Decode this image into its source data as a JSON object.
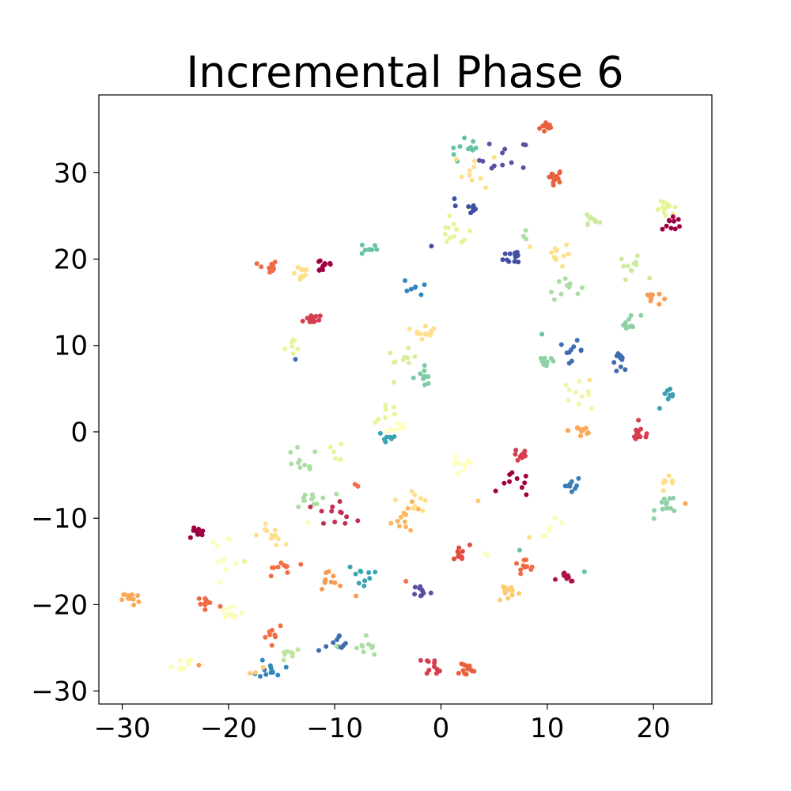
{
  "chart_data": {
    "type": "scatter",
    "title": "Incremental Phase 6",
    "xlabel": "",
    "ylabel": "",
    "xlim": [
      -32.2,
      25.5
    ],
    "ylim": [
      -31.5,
      39.0
    ],
    "xticks": [
      -30,
      -20,
      -10,
      0,
      10,
      20
    ],
    "yticks": [
      -30,
      -20,
      -10,
      0,
      10,
      20,
      30
    ],
    "xtick_labels": [
      "−30",
      "−20",
      "−10",
      "0",
      "10",
      "20"
    ],
    "ytick_labels": [
      "−30",
      "−20",
      "−10",
      "0",
      "10",
      "20",
      "30"
    ],
    "grid": false,
    "legend": "none",
    "clusters": [
      {
        "x": 10.0,
        "y": 35.3,
        "n": 12,
        "spread": 0.35,
        "color": "#e8603c"
      },
      {
        "x": 10.7,
        "y": 29.6,
        "n": 12,
        "spread": 0.4,
        "color": "#e8603c"
      },
      {
        "x": 2.5,
        "y": 32.4,
        "n": 10,
        "spread": 0.8,
        "color": "#66c2a5"
      },
      {
        "x": 6.0,
        "y": 31.5,
        "n": 12,
        "spread": 1.2,
        "color": "#5e4fa2"
      },
      {
        "x": 3.5,
        "y": 30.3,
        "n": 10,
        "spread": 1.0,
        "color": "#fee08b"
      },
      {
        "x": 2.8,
        "y": 25.8,
        "n": 8,
        "spread": 0.3,
        "color": "#3f4ea1"
      },
      {
        "x": 1.2,
        "y": 26.0,
        "n": 2,
        "spread": 0.6,
        "color": "#3f4ea1"
      },
      {
        "x": 1.3,
        "y": 23.0,
        "n": 12,
        "spread": 0.8,
        "color": "#e6f598"
      },
      {
        "x": 14.0,
        "y": 24.5,
        "n": 10,
        "spread": 0.45,
        "color": "#cdeb9d"
      },
      {
        "x": 21.3,
        "y": 25.6,
        "n": 12,
        "spread": 0.5,
        "color": "#e6f598"
      },
      {
        "x": 21.8,
        "y": 24.2,
        "n": 10,
        "spread": 0.5,
        "color": "#9e0142"
      },
      {
        "x": -6.8,
        "y": 21.2,
        "n": 8,
        "spread": 0.4,
        "color": "#66c2a5"
      },
      {
        "x": -16.3,
        "y": 19.0,
        "n": 12,
        "spread": 0.45,
        "color": "#f06a44"
      },
      {
        "x": -13.3,
        "y": 18.5,
        "n": 12,
        "spread": 0.5,
        "color": "#fee08b"
      },
      {
        "x": -11.0,
        "y": 19.3,
        "n": 12,
        "spread": 0.5,
        "color": "#9e0142"
      },
      {
        "x": 7.0,
        "y": 20.4,
        "n": 12,
        "spread": 0.55,
        "color": "#3f4ea1"
      },
      {
        "x": 10.8,
        "y": 20.6,
        "n": 12,
        "spread": 0.7,
        "color": "#fee08b"
      },
      {
        "x": 11.5,
        "y": 17.0,
        "n": 10,
        "spread": 0.8,
        "color": "#abdda4"
      },
      {
        "x": 18.0,
        "y": 19.0,
        "n": 10,
        "spread": 0.6,
        "color": "#cdeb9d"
      },
      {
        "x": 8.0,
        "y": 22.4,
        "n": 3,
        "spread": 0.4,
        "color": "#abdda4"
      },
      {
        "x": -2.3,
        "y": 16.8,
        "n": 7,
        "spread": 0.6,
        "color": "#3288bd"
      },
      {
        "x": -12.2,
        "y": 13.1,
        "n": 12,
        "spread": 0.4,
        "color": "#d53e4f"
      },
      {
        "x": 19.8,
        "y": 15.5,
        "n": 10,
        "spread": 0.45,
        "color": "#f89a52"
      },
      {
        "x": 17.8,
        "y": 12.6,
        "n": 10,
        "spread": 0.5,
        "color": "#8fd1a4"
      },
      {
        "x": -1.5,
        "y": 11.8,
        "n": 12,
        "spread": 0.5,
        "color": "#fee08b"
      },
      {
        "x": -13.7,
        "y": 9.8,
        "n": 7,
        "spread": 0.5,
        "color": "#e6f598"
      },
      {
        "x": -3.7,
        "y": 8.1,
        "n": 10,
        "spread": 0.7,
        "color": "#d8ef9c"
      },
      {
        "x": 9.9,
        "y": 8.3,
        "n": 10,
        "spread": 0.5,
        "color": "#8fd1a4"
      },
      {
        "x": 12.3,
        "y": 9.4,
        "n": 10,
        "spread": 0.55,
        "color": "#3f6cb0"
      },
      {
        "x": 17.0,
        "y": 8.1,
        "n": 10,
        "spread": 0.5,
        "color": "#3f6cb0"
      },
      {
        "x": -1.7,
        "y": 6.4,
        "n": 10,
        "spread": 0.55,
        "color": "#7ecba4"
      },
      {
        "x": 12.6,
        "y": 4.5,
        "n": 10,
        "spread": 0.7,
        "color": "#f1f6a8"
      },
      {
        "x": 21.4,
        "y": 3.8,
        "n": 9,
        "spread": 0.6,
        "color": "#3a9eb3"
      },
      {
        "x": -5.0,
        "y": 2.2,
        "n": 7,
        "spread": 0.6,
        "color": "#e6f598"
      },
      {
        "x": -4.2,
        "y": 0.4,
        "n": 8,
        "spread": 0.6,
        "color": "#ffffbf"
      },
      {
        "x": -5.0,
        "y": -0.6,
        "n": 8,
        "spread": 0.5,
        "color": "#3aa4b0"
      },
      {
        "x": 13.2,
        "y": 0.2,
        "n": 12,
        "spread": 0.6,
        "color": "#fba857"
      },
      {
        "x": 18.8,
        "y": -0.3,
        "n": 12,
        "spread": 0.5,
        "color": "#d53e4f"
      },
      {
        "x": -10.0,
        "y": -2.2,
        "n": 5,
        "spread": 0.6,
        "color": "#e6f598"
      },
      {
        "x": -13.3,
        "y": -3.7,
        "n": 10,
        "spread": 0.9,
        "color": "#abdda4"
      },
      {
        "x": 1.7,
        "y": -4.2,
        "n": 10,
        "spread": 0.7,
        "color": "#ffffbf"
      },
      {
        "x": 7.6,
        "y": -2.7,
        "n": 10,
        "spread": 0.4,
        "color": "#d53e4f"
      },
      {
        "x": 7.0,
        "y": -6.2,
        "n": 10,
        "spread": 0.7,
        "color": "#9e0142"
      },
      {
        "x": 12.2,
        "y": -6.1,
        "n": 10,
        "spread": 0.5,
        "color": "#3a7fb8"
      },
      {
        "x": 21.3,
        "y": -6.3,
        "n": 7,
        "spread": 0.5,
        "color": "#fee08b"
      },
      {
        "x": 21.4,
        "y": -8.5,
        "n": 12,
        "spread": 0.6,
        "color": "#8fd1a4"
      },
      {
        "x": -12.0,
        "y": -7.8,
        "n": 12,
        "spread": 0.9,
        "color": "#abdda4"
      },
      {
        "x": -10.3,
        "y": -9.4,
        "n": 8,
        "spread": 0.7,
        "color": "#c2304f"
      },
      {
        "x": -8.6,
        "y": -9.9,
        "n": 4,
        "spread": 0.5,
        "color": "#c2304f"
      },
      {
        "x": -7.8,
        "y": -5.9,
        "n": 2,
        "spread": 0.3,
        "color": "#f46d43"
      },
      {
        "x": -2.5,
        "y": -7.7,
        "n": 9,
        "spread": 0.8,
        "color": "#fee08b"
      },
      {
        "x": -3.2,
        "y": -10.0,
        "n": 12,
        "spread": 0.8,
        "color": "#fcb55e"
      },
      {
        "x": 10.6,
        "y": -10.8,
        "n": 7,
        "spread": 0.6,
        "color": "#fbfdb8"
      },
      {
        "x": -23.0,
        "y": -11.7,
        "n": 12,
        "spread": 0.4,
        "color": "#9e0142"
      },
      {
        "x": -20.3,
        "y": -13.8,
        "n": 10,
        "spread": 0.9,
        "color": "#fbfdb8"
      },
      {
        "x": -16.0,
        "y": -12.0,
        "n": 12,
        "spread": 0.6,
        "color": "#fee08b"
      },
      {
        "x": -15.4,
        "y": -15.9,
        "n": 10,
        "spread": 0.7,
        "color": "#f46d43"
      },
      {
        "x": -10.5,
        "y": -17.2,
        "n": 10,
        "spread": 0.6,
        "color": "#f89a52"
      },
      {
        "x": -7.6,
        "y": -16.5,
        "n": 10,
        "spread": 0.6,
        "color": "#3aa4b0"
      },
      {
        "x": 1.7,
        "y": -14.1,
        "n": 10,
        "spread": 0.5,
        "color": "#e24a3f"
      },
      {
        "x": 7.7,
        "y": -15.8,
        "n": 10,
        "spread": 0.6,
        "color": "#f06a44"
      },
      {
        "x": 11.8,
        "y": -17.1,
        "n": 9,
        "spread": 0.5,
        "color": "#b01246"
      },
      {
        "x": -29.2,
        "y": -19.3,
        "n": 12,
        "spread": 0.4,
        "color": "#fba857"
      },
      {
        "x": -22.0,
        "y": -19.9,
        "n": 12,
        "spread": 0.7,
        "color": "#f06a44"
      },
      {
        "x": -19.8,
        "y": -21.0,
        "n": 12,
        "spread": 0.6,
        "color": "#fbfdb8"
      },
      {
        "x": -1.8,
        "y": -18.4,
        "n": 10,
        "spread": 0.4,
        "color": "#5e4fa2"
      },
      {
        "x": 6.4,
        "y": -18.5,
        "n": 12,
        "spread": 0.6,
        "color": "#fecc6e"
      },
      {
        "x": -15.8,
        "y": -23.0,
        "n": 8,
        "spread": 0.6,
        "color": "#f46d43"
      },
      {
        "x": -14.2,
        "y": -25.6,
        "n": 8,
        "spread": 0.5,
        "color": "#bfe5a0"
      },
      {
        "x": -9.5,
        "y": -24.9,
        "n": 10,
        "spread": 0.7,
        "color": "#3f6cb0"
      },
      {
        "x": -7.5,
        "y": -25.0,
        "n": 10,
        "spread": 0.8,
        "color": "#abdda4"
      },
      {
        "x": -24.3,
        "y": -26.9,
        "n": 10,
        "spread": 0.5,
        "color": "#fbfdb8"
      },
      {
        "x": -16.0,
        "y": -27.3,
        "n": 12,
        "spread": 0.6,
        "color": "#3288bd"
      },
      {
        "x": -17.4,
        "y": -27.5,
        "n": 3,
        "spread": 0.3,
        "color": "#fecc6e"
      },
      {
        "x": -0.6,
        "y": -27.0,
        "n": 12,
        "spread": 0.5,
        "color": "#d53e4f"
      },
      {
        "x": 2.2,
        "y": -27.5,
        "n": 12,
        "spread": 0.5,
        "color": "#e8603c"
      },
      {
        "x": 4.0,
        "y": -14.5,
        "n": 2,
        "spread": 0.4,
        "color": "#fbfdb8"
      },
      {
        "x": -22.8,
        "y": -27.0,
        "n": 1,
        "spread": 0.1,
        "color": "#f89a52"
      },
      {
        "x": 3.5,
        "y": -8.0,
        "n": 1,
        "spread": 0.1,
        "color": "#fecc6e"
      },
      {
        "x": -0.9,
        "y": 21.5,
        "n": 1,
        "spread": 0.1,
        "color": "#3f4ea1"
      },
      {
        "x": -13.7,
        "y": 8.4,
        "n": 1,
        "spread": 0.1,
        "color": "#3f6cb0"
      },
      {
        "x": 13.5,
        "y": -16.2,
        "n": 1,
        "spread": 0.1,
        "color": "#66c2a5"
      },
      {
        "x": 8.3,
        "y": -12.2,
        "n": 1,
        "spread": 0.1,
        "color": "#fee08b"
      },
      {
        "x": -8.0,
        "y": -19.0,
        "n": 1,
        "spread": 0.1,
        "color": "#f89a52"
      },
      {
        "x": -3.3,
        "y": -17.3,
        "n": 1,
        "spread": 0.1,
        "color": "#f46d43"
      },
      {
        "x": 7.4,
        "y": -13.7,
        "n": 1,
        "spread": 0.1,
        "color": "#66c2a5"
      },
      {
        "x": 9.5,
        "y": 11.3,
        "n": 1,
        "spread": 0.1,
        "color": "#66c2a5"
      },
      {
        "x": 17.0,
        "y": 20.0,
        "n": 1,
        "spread": 0.1,
        "color": "#cdeb9d"
      },
      {
        "x": 14.0,
        "y": 6.0,
        "n": 1,
        "spread": 0.1,
        "color": "#fee08b"
      },
      {
        "x": -12.5,
        "y": -10.5,
        "n": 1,
        "spread": 0.1,
        "color": "#fbfdb8"
      },
      {
        "x": -11.5,
        "y": -25.3,
        "n": 1,
        "spread": 0.1,
        "color": "#3f6cb0"
      },
      {
        "x": -18.5,
        "y": -15.0,
        "n": 1,
        "spread": 0.1,
        "color": "#e6f598"
      },
      {
        "x": 23.0,
        "y": -8.3,
        "n": 1,
        "spread": 0.1,
        "color": "#fba857"
      }
    ]
  }
}
